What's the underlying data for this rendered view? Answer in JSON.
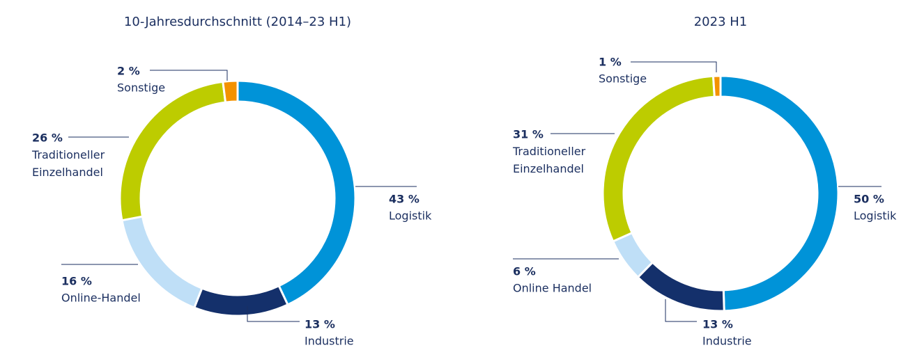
{
  "chart_data": [
    {
      "type": "pie",
      "title": "10-Jahresdurchschnitt (2014–23 H1)",
      "categories": [
        "Logistik",
        "Industrie",
        "Online-Handel",
        "Traditioneller Einzelhandel",
        "Sonstige"
      ],
      "values": [
        43,
        13,
        16,
        26,
        2
      ],
      "value_labels": [
        "43 %",
        "13 %",
        "16 %",
        "26 %",
        "2 %"
      ],
      "colors": [
        "#0093d8",
        "#14306b",
        "#bfdff7",
        "#bdcc00",
        "#f39200"
      ]
    },
    {
      "type": "pie",
      "title": "2023 H1",
      "categories": [
        "Logistik",
        "Industrie",
        "Online Handel",
        "Traditioneller Einzelhandel",
        "Sonstige"
      ],
      "values": [
        50,
        13,
        6,
        31,
        1
      ],
      "value_labels": [
        "50 %",
        "13 %",
        "6 %",
        "31 %",
        "1 %"
      ],
      "colors": [
        "#0093d8",
        "#14306b",
        "#bfdff7",
        "#bdcc00",
        "#f39200"
      ]
    }
  ]
}
